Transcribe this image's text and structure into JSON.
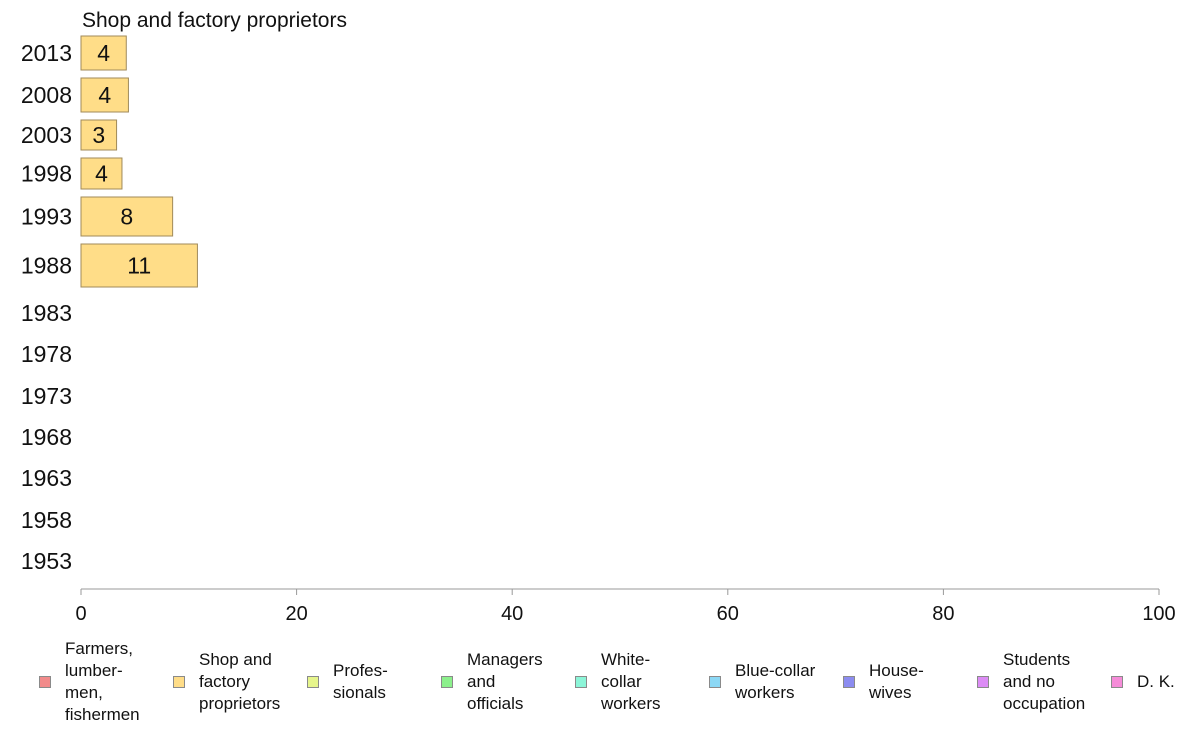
{
  "chart_data": {
    "type": "bar",
    "orientation": "horizontal",
    "title": "Shop and factory proprietors",
    "categories": [
      "2013",
      "2008",
      "2003",
      "1998",
      "1993",
      "1988",
      "1983",
      "1978",
      "1973",
      "1968",
      "1963",
      "1958",
      "1953"
    ],
    "series": [
      {
        "values": [
          4.2,
          4.4,
          3.3,
          3.8,
          8.5,
          10.8,
          null,
          null,
          null,
          null,
          null,
          null,
          null
        ],
        "labels": [
          "4",
          "4",
          "3",
          "4",
          "8",
          "11",
          "",
          "",
          "",
          "",
          "",
          "",
          ""
        ],
        "color": "#ffdd88"
      }
    ],
    "xlim": [
      0,
      100
    ],
    "xticks": [
      0,
      20,
      40,
      60,
      80,
      100
    ],
    "xlabel": "",
    "ylabel": "",
    "grid": false,
    "legend": {
      "placement": "bottom",
      "entries": [
        {
          "label": "Farmers,\nlumber-\nmen,\nfishermen",
          "color": "#f28b8b"
        },
        {
          "label": "Shop and\nfactory\nproprietors",
          "color": "#ffdd88"
        },
        {
          "label": "Profes-\nsionals",
          "color": "#e6f58c"
        },
        {
          "label": "Managers\nand\nofficials",
          "color": "#8cf08c"
        },
        {
          "label": "White-\ncollar\nworkers",
          "color": "#8cf5d8"
        },
        {
          "label": "Blue-collar\nworkers",
          "color": "#8cd8f5"
        },
        {
          "label": "House-\nwives",
          "color": "#8c8cf0"
        },
        {
          "label": "Students\nand no\noccupation",
          "color": "#dc8cf5"
        },
        {
          "label": "D. K.",
          "color": "#f58cd8"
        }
      ]
    }
  }
}
